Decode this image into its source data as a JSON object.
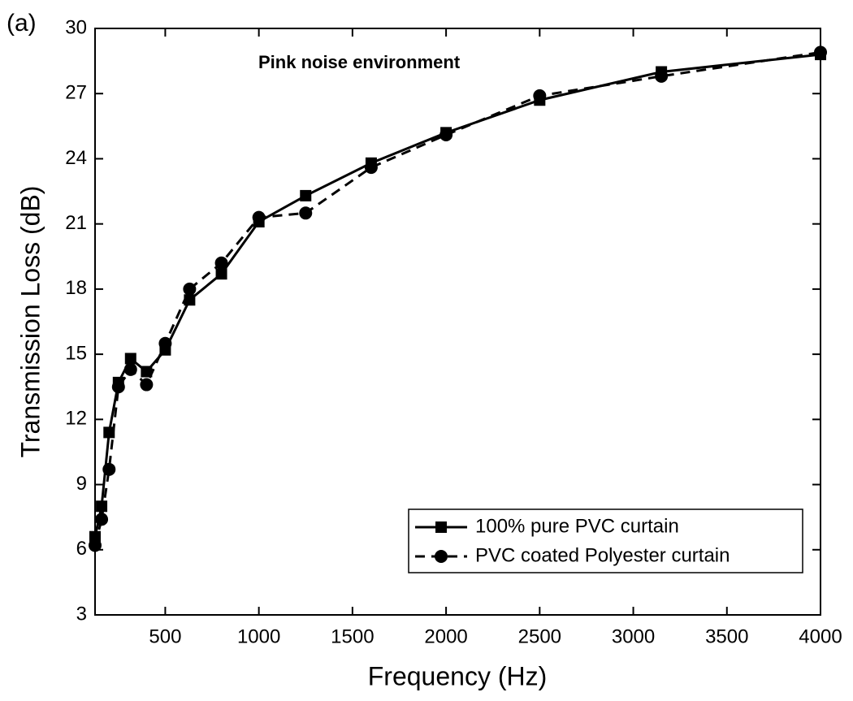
{
  "chart_data": {
    "type": "line",
    "annotations": [
      "(a)",
      "Pink noise environment"
    ],
    "x_label": "Frequency (Hz)",
    "y_label": "Transmission Loss (dB)",
    "x": [
      125,
      160,
      200,
      250,
      315,
      400,
      500,
      630,
      800,
      1000,
      1250,
      1600,
      2000,
      2500,
      3150,
      4000
    ],
    "series": [
      {
        "name": "100% pure PVC curtain",
        "color": "#000000",
        "line_style": "solid",
        "marker": "square",
        "values": [
          6.6,
          8.0,
          11.4,
          13.7,
          14.8,
          14.2,
          15.2,
          17.5,
          18.7,
          21.1,
          22.3,
          23.8,
          25.2,
          26.7,
          28.0,
          28.8
        ]
      },
      {
        "name": "PVC coated Polyester curtain",
        "color": "#000000",
        "line_style": "dashed",
        "marker": "circle",
        "values": [
          6.2,
          7.4,
          9.7,
          13.5,
          14.3,
          13.6,
          15.5,
          18.0,
          19.2,
          21.3,
          21.5,
          23.6,
          25.1,
          26.9,
          27.8,
          28.9
        ]
      }
    ],
    "xlim": [
      125,
      4000
    ],
    "xticks": [
      500,
      1000,
      1500,
      2000,
      2500,
      3000,
      3500,
      4000
    ],
    "ylim": [
      3,
      30
    ],
    "yticks": [
      3,
      6,
      9,
      12,
      15,
      18,
      21,
      24,
      27,
      30
    ],
    "grid": false,
    "legend": "lower right"
  }
}
